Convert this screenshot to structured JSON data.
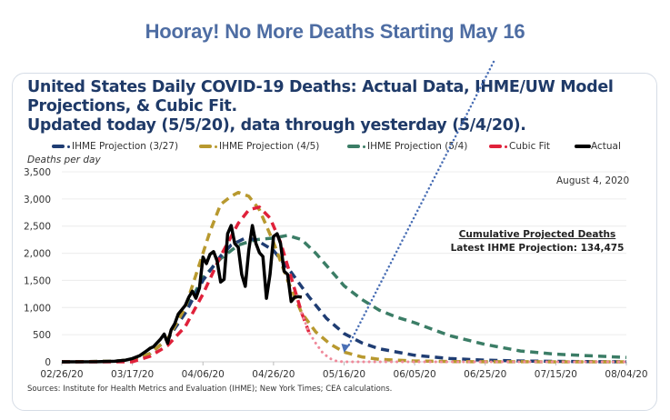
{
  "headline": "Hooray! No More Deaths Starting May 16",
  "chart_data": {
    "type": "line",
    "title_lines": [
      "United States Daily COVID-19 Deaths: Actual Data, IHME/UW Model",
      "Projections, & Cubic Fit.",
      "Updated today (5/5/20), data through yesterday (5/4/20)."
    ],
    "ylabel": "Deaths per day",
    "xlabel": "",
    "x_unit": "days since 02/26/20",
    "xlim": [
      0,
      160
    ],
    "ylim": [
      0,
      3500
    ],
    "yticks": [
      0,
      500,
      1000,
      1500,
      2000,
      2500,
      3000,
      3500
    ],
    "ytick_labels": [
      "0",
      "500",
      "1,000",
      "1,500",
      "2,000",
      "2,500",
      "3,000",
      "3,500"
    ],
    "xticks": [
      0,
      20,
      40,
      60,
      80,
      100,
      120,
      140,
      160
    ],
    "xtick_labels": [
      "02/26/20",
      "03/17/20",
      "04/06/20",
      "04/26/20",
      "05/16/20",
      "06/05/20",
      "06/25/20",
      "07/15/20",
      "08/04/20"
    ],
    "grid": true,
    "legend_position": "top",
    "series": [
      {
        "name": "IHME Projection (3/27)",
        "color": "#1f3d73",
        "style": "dashed",
        "x": [
          0,
          15,
          20,
          25,
          30,
          35,
          40,
          45,
          48,
          52,
          55,
          60,
          65,
          70,
          75,
          80,
          85,
          90,
          100,
          110,
          120,
          130,
          140,
          150,
          160
        ],
        "y": [
          0,
          10,
          40,
          150,
          420,
          900,
          1500,
          1950,
          2150,
          2280,
          2250,
          2050,
          1650,
          1200,
          800,
          520,
          350,
          240,
          120,
          60,
          30,
          15,
          8,
          4,
          2
        ]
      },
      {
        "name": "IHME Projection (4/5)",
        "color": "#b8992f",
        "style": "dashed",
        "x": [
          0,
          15,
          20,
          25,
          30,
          35,
          38,
          42,
          45,
          48,
          50,
          53,
          56,
          60,
          64,
          68,
          72,
          76,
          80,
          85,
          90,
          100,
          110,
          120,
          160
        ],
        "y": [
          0,
          10,
          40,
          150,
          420,
          1000,
          1600,
          2400,
          2900,
          3050,
          3120,
          3050,
          2800,
          2200,
          1500,
          900,
          550,
          330,
          180,
          90,
          45,
          15,
          5,
          2,
          0
        ]
      },
      {
        "name": "IHME Projection (5/4)",
        "color": "#3b7d66",
        "style": "dashed",
        "x": [
          0,
          15,
          20,
          25,
          30,
          35,
          40,
          45,
          50,
          55,
          60,
          64,
          68,
          72,
          76,
          80,
          85,
          90,
          95,
          100,
          105,
          110,
          120,
          130,
          140,
          150,
          160
        ],
        "y": [
          0,
          10,
          40,
          150,
          420,
          950,
          1550,
          1900,
          2150,
          2250,
          2280,
          2330,
          2250,
          2000,
          1700,
          1400,
          1150,
          950,
          820,
          720,
          600,
          480,
          320,
          200,
          140,
          110,
          80
        ]
      },
      {
        "name": "Cubic Fit",
        "color": "#e0213a",
        "style": "dashed",
        "x": [
          0,
          20,
          25,
          30,
          35,
          40,
          45,
          50,
          53,
          56,
          59,
          62,
          65,
          68,
          70
        ],
        "y": [
          0,
          0,
          100,
          300,
          650,
          1250,
          1950,
          2550,
          2800,
          2850,
          2650,
          2200,
          1550,
          900,
          550
        ]
      },
      {
        "name": "Cubic Fit (extension)",
        "color": "#ef8a9b",
        "style": "dotted",
        "legend": false,
        "x": [
          68,
          70,
          72,
          74,
          76,
          78,
          80,
          90,
          100,
          110,
          120,
          130,
          140,
          150,
          160
        ],
        "y": [
          900,
          550,
          340,
          160,
          60,
          10,
          0,
          0,
          0,
          0,
          0,
          0,
          0,
          0,
          0
        ]
      },
      {
        "name": "Actual",
        "color": "#000000",
        "style": "solid",
        "x": [
          0,
          10,
          15,
          18,
          20,
          22,
          24,
          25,
          26,
          27,
          28,
          29,
          30,
          31,
          32,
          33,
          34,
          35,
          36,
          37,
          38,
          39,
          40,
          41,
          42,
          43,
          44,
          45,
          46,
          47,
          48,
          49,
          50,
          51,
          52,
          53,
          54,
          55,
          56,
          57,
          58,
          59,
          60,
          61,
          62,
          63,
          64,
          65,
          66,
          67,
          68
        ],
        "y": [
          0,
          2,
          10,
          30,
          60,
          110,
          200,
          250,
          280,
          350,
          420,
          510,
          340,
          590,
          700,
          880,
          960,
          1040,
          1190,
          1300,
          1170,
          1360,
          1930,
          1810,
          1980,
          2030,
          1860,
          1470,
          1520,
          2360,
          2510,
          2180,
          2110,
          1610,
          1390,
          2060,
          2510,
          2180,
          2010,
          1940,
          1170,
          1610,
          2310,
          2360,
          2180,
          1670,
          1610,
          1110,
          1190,
          1200,
          1190
        ]
      }
    ],
    "annotations": {
      "arrow": {
        "style": "dotted",
        "color": "#4a6fb5",
        "points_to": "05/16/20",
        "at_value": 0
      },
      "date_label": "August 4, 2020",
      "cumulative_title": "Cumulative Projected Deaths",
      "cumulative_value": "Latest IHME Projection: 134,475"
    },
    "source": "Sources: Institute for Health Metrics and Evaluation (IHME); New York Times; CEA calculations."
  },
  "legend": [
    {
      "label": "IHME Projection (3/27)",
      "color": "#1f3d73"
    },
    {
      "label": "IHME Projection (4/5)",
      "color": "#b8992f"
    },
    {
      "label": "IHME Projection (5/4)",
      "color": "#3b7d66"
    },
    {
      "label": "Cubic Fit",
      "color": "#e0213a"
    },
    {
      "label": "Actual",
      "color": "#000000"
    }
  ]
}
